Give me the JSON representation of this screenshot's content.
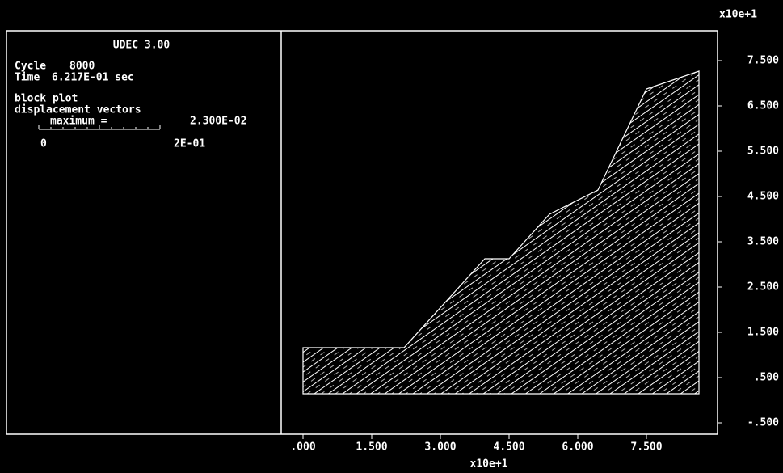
{
  "header": {
    "title": "UDEC 3.00"
  },
  "status": {
    "cycle_label": "Cycle",
    "cycle": "8000",
    "time_label": "Time",
    "time": "6.217E-01 sec"
  },
  "legend": {
    "plot": "block plot",
    "vectors": "displacement vectors",
    "maximum_label": "maximum =",
    "maximum": "2.300E-02",
    "scale_min": "0",
    "scale_max": "2E-01"
  },
  "axes": {
    "y_multiplier": "x10e+1",
    "x_multiplier": "x10e+1",
    "yticks": [
      "7.500",
      "6.500",
      "5.500",
      "4.500",
      "3.500",
      "2.500",
      "1.500",
      ".500",
      "-.500"
    ],
    "xticks": [
      ".000",
      "1.500",
      "3.000",
      "4.500",
      "6.000",
      "7.500"
    ]
  }
}
